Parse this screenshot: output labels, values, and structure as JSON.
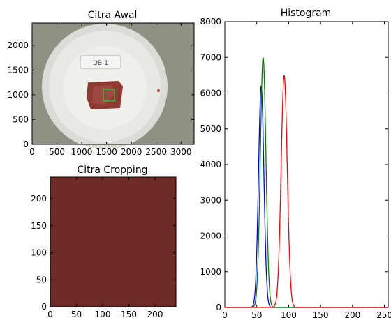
{
  "panels": {
    "original": {
      "title": "Citra Awal",
      "xticks": [
        0,
        500,
        1000,
        1500,
        2000,
        2500,
        3000
      ],
      "yticks": [
        0,
        500,
        1000,
        1500,
        2000
      ],
      "xlim": [
        0,
        3264
      ],
      "ylim": [
        2448,
        0
      ],
      "image": {
        "tray_color": "#e6e6e2",
        "background_color": "#8d8c80",
        "label_text": "DB-1",
        "sample_color": "#8e3a33",
        "crop_marker_color": "#2ecc40"
      }
    },
    "cropped": {
      "title": "Citra Cropping",
      "xticks": [
        0,
        50,
        100,
        150,
        200
      ],
      "yticks": [
        0,
        50,
        100,
        150,
        200
      ],
      "xlim": [
        0,
        240
      ],
      "ylim": [
        240,
        0
      ],
      "fill_color": "#6b2a25"
    }
  },
  "chart_data": {
    "type": "line",
    "title": "Histogram",
    "xlabel": "",
    "ylabel": "",
    "xlim": [
      0,
      256
    ],
    "ylim": [
      0,
      8000
    ],
    "xticks": [
      0,
      50,
      100,
      150,
      200,
      250
    ],
    "yticks": [
      0,
      1000,
      2000,
      3000,
      4000,
      5000,
      6000,
      7000,
      8000
    ],
    "grid": false,
    "series": [
      {
        "color": "#0000ff",
        "peak_x": 57,
        "peak_y": 6200,
        "sigma": 4.2
      },
      {
        "color": "#008000",
        "peak_x": 60,
        "peak_y": 7000,
        "sigma": 4.4
      },
      {
        "color": "#ff0000",
        "peak_x": 93,
        "peak_y": 6500,
        "sigma": 4.8
      }
    ]
  }
}
